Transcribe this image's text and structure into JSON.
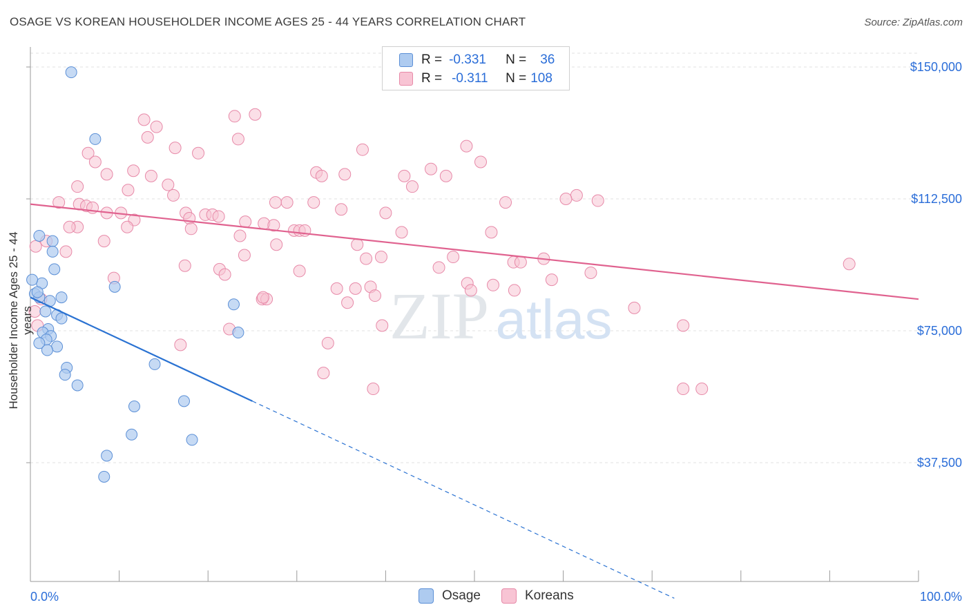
{
  "title": "OSAGE VS KOREAN HOUSEHOLDER INCOME AGES 25 - 44 YEARS CORRELATION CHART",
  "source": "Source: ZipAtlas.com",
  "watermark": {
    "zip": "ZIP",
    "atlas": "atlas"
  },
  "legend": {
    "rows": [
      {
        "r_label": "R =",
        "r_value": "-0.331",
        "n_label": "N =",
        "n_value": "36"
      },
      {
        "r_label": "R =",
        "r_value": "-0.311",
        "n_label": "N =",
        "n_value": "108"
      }
    ]
  },
  "bottom_legend": {
    "osage": "Osage",
    "koreans": "Koreans"
  },
  "colors": {
    "osage_fill": "#aecbf0",
    "osage_stroke": "#5b8fd6",
    "osage_line": "#2a72d2",
    "korean_fill": "#f8c4d4",
    "korean_stroke": "#e789a8",
    "korean_line": "#e0628f",
    "tick_label": "#2a6dd8",
    "grid": "#e2e2e2"
  },
  "chart_data": {
    "type": "scatter",
    "title": "OSAGE VS KOREAN HOUSEHOLDER INCOME AGES 25 - 44 YEARS CORRELATION CHART",
    "ylabel": "Householder Income Ages 25 - 44 years",
    "xlabel": "",
    "xlim": [
      0,
      100
    ],
    "ylim": [
      0,
      155000
    ],
    "x_tick_labels": [
      "0.0%",
      "100.0%"
    ],
    "y_ticks": [
      37500,
      75000,
      112500,
      150000
    ],
    "y_tick_labels": [
      "$37,500",
      "$75,000",
      "$112,500",
      "$150,000"
    ],
    "grid": "horizontal dashed",
    "legend_position": "top-center",
    "series": [
      {
        "name": "Osage",
        "R": -0.331,
        "N": 36,
        "trend": {
          "x0": 0,
          "y0": 84500,
          "x1": 25,
          "y1": 55000,
          "dashed_to_x": 72.5
        },
        "points": [
          [
            4.6,
            148500
          ],
          [
            7.3,
            129500
          ],
          [
            1.0,
            102000
          ],
          [
            2.5,
            100500
          ],
          [
            2.5,
            97500
          ],
          [
            2.7,
            92500
          ],
          [
            1.3,
            88500
          ],
          [
            0.5,
            85500
          ],
          [
            1.0,
            84500
          ],
          [
            2.2,
            83500
          ],
          [
            3.5,
            84500
          ],
          [
            9.5,
            87500
          ],
          [
            1.7,
            80500
          ],
          [
            3.0,
            79500
          ],
          [
            3.5,
            78500
          ],
          [
            2.0,
            75500
          ],
          [
            1.4,
            74500
          ],
          [
            2.3,
            73500
          ],
          [
            1.8,
            72500
          ],
          [
            1.0,
            71500
          ],
          [
            3.0,
            70500
          ],
          [
            1.9,
            69500
          ],
          [
            22.9,
            82500
          ],
          [
            23.4,
            74500
          ],
          [
            4.1,
            64500
          ],
          [
            3.9,
            62500
          ],
          [
            5.3,
            59500
          ],
          [
            14.0,
            65500
          ],
          [
            17.3,
            55000
          ],
          [
            11.7,
            53500
          ],
          [
            11.4,
            45500
          ],
          [
            18.2,
            44000
          ],
          [
            8.6,
            39500
          ],
          [
            8.3,
            33500
          ],
          [
            0.2,
            89500
          ],
          [
            0.8,
            86000
          ]
        ]
      },
      {
        "name": "Koreans",
        "R": -0.311,
        "N": 108,
        "trend": {
          "x0": 0,
          "y0": 111000,
          "x1": 100,
          "y1": 84000
        },
        "points": [
          [
            12.8,
            135000
          ],
          [
            23.0,
            136000
          ],
          [
            25.3,
            136500
          ],
          [
            14.2,
            133000
          ],
          [
            13.2,
            130000
          ],
          [
            23.4,
            129500
          ],
          [
            16.3,
            127000
          ],
          [
            18.9,
            125500
          ],
          [
            37.4,
            126500
          ],
          [
            6.5,
            125500
          ],
          [
            7.3,
            123000
          ],
          [
            49.1,
            127500
          ],
          [
            50.7,
            123000
          ],
          [
            11.6,
            120500
          ],
          [
            8.6,
            119500
          ],
          [
            13.6,
            119000
          ],
          [
            32.2,
            120000
          ],
          [
            32.8,
            119000
          ],
          [
            35.4,
            119500
          ],
          [
            42.1,
            119000
          ],
          [
            45.1,
            121000
          ],
          [
            46.8,
            119000
          ],
          [
            43.0,
            116000
          ],
          [
            15.5,
            116500
          ],
          [
            5.3,
            116000
          ],
          [
            11.0,
            115000
          ],
          [
            16.1,
            113500
          ],
          [
            3.2,
            111500
          ],
          [
            5.5,
            111000
          ],
          [
            6.3,
            110500
          ],
          [
            7.0,
            110000
          ],
          [
            17.5,
            108500
          ],
          [
            27.6,
            111500
          ],
          [
            28.9,
            111500
          ],
          [
            31.9,
            111500
          ],
          [
            35.0,
            109500
          ],
          [
            40.0,
            108500
          ],
          [
            53.5,
            111500
          ],
          [
            61.5,
            113500
          ],
          [
            60.3,
            112500
          ],
          [
            63.9,
            112000
          ],
          [
            8.6,
            108500
          ],
          [
            10.2,
            108500
          ],
          [
            11.7,
            106500
          ],
          [
            17.9,
            107000
          ],
          [
            19.7,
            108000
          ],
          [
            20.5,
            108000
          ],
          [
            21.2,
            107500
          ],
          [
            24.2,
            106000
          ],
          [
            26.3,
            105500
          ],
          [
            27.4,
            105000
          ],
          [
            29.7,
            103500
          ],
          [
            30.3,
            103500
          ],
          [
            30.9,
            103500
          ],
          [
            10.9,
            104500
          ],
          [
            18.1,
            104000
          ],
          [
            5.3,
            104500
          ],
          [
            4.4,
            104500
          ],
          [
            23.6,
            102000
          ],
          [
            27.7,
            99500
          ],
          [
            36.8,
            99500
          ],
          [
            41.8,
            103000
          ],
          [
            51.9,
            103000
          ],
          [
            8.3,
            100500
          ],
          [
            1.8,
            100500
          ],
          [
            0.6,
            99000
          ],
          [
            4.0,
            97500
          ],
          [
            24.1,
            96500
          ],
          [
            37.8,
            95500
          ],
          [
            47.6,
            96000
          ],
          [
            57.8,
            95500
          ],
          [
            39.5,
            96000
          ],
          [
            46.0,
            93000
          ],
          [
            54.4,
            94500
          ],
          [
            55.2,
            94500
          ],
          [
            17.4,
            93500
          ],
          [
            21.3,
            92500
          ],
          [
            21.9,
            91000
          ],
          [
            30.3,
            92000
          ],
          [
            63.1,
            91500
          ],
          [
            9.4,
            90000
          ],
          [
            58.7,
            89500
          ],
          [
            49.2,
            88500
          ],
          [
            49.6,
            86500
          ],
          [
            52.1,
            88000
          ],
          [
            54.5,
            86500
          ],
          [
            34.5,
            87000
          ],
          [
            36.6,
            87000
          ],
          [
            38.3,
            87500
          ],
          [
            38.8,
            85000
          ],
          [
            26.1,
            84000
          ],
          [
            26.6,
            84000
          ],
          [
            35.7,
            83000
          ],
          [
            68.0,
            81500
          ],
          [
            73.5,
            76500
          ],
          [
            39.6,
            76500
          ],
          [
            22.4,
            75500
          ],
          [
            16.9,
            71000
          ],
          [
            33.5,
            71500
          ],
          [
            26.2,
            84500
          ],
          [
            92.2,
            94000
          ],
          [
            33.0,
            63000
          ],
          [
            38.6,
            58500
          ],
          [
            73.5,
            58500
          ],
          [
            75.6,
            58500
          ],
          [
            1.2,
            84000
          ],
          [
            0.5,
            80500
          ],
          [
            0.8,
            76500
          ]
        ]
      }
    ]
  }
}
